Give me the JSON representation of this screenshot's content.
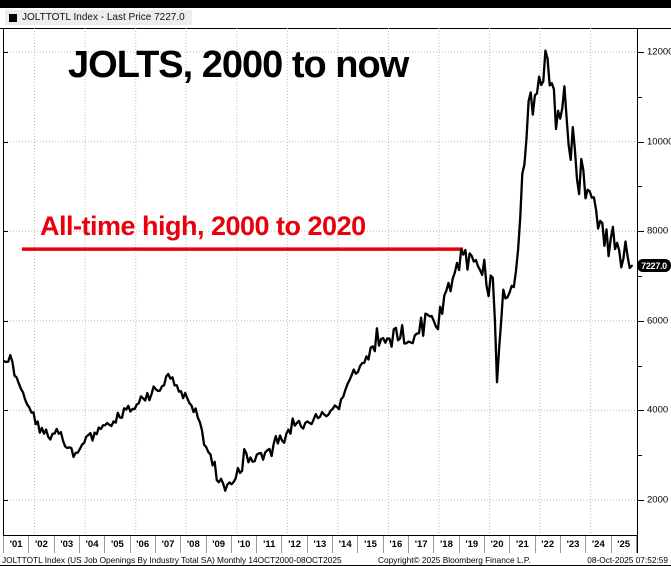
{
  "legend": {
    "series_label": "JOLTTOTL Index - Last Price 7227.0"
  },
  "headline": {
    "title": "JOLTS, 2000 to now"
  },
  "annotation": {
    "text": "All-time high, 2000 to 2020",
    "color": "#e8000d",
    "value": 7600,
    "x1_year": 2001.5,
    "x2_year": 2018.95
  },
  "last_price": {
    "label": "7227.0",
    "value": 7227.0,
    "bg": "#000000",
    "fg": "#ffffff"
  },
  "y_axis": {
    "major_ticks": [
      2000,
      4000,
      6000,
      8000,
      10000,
      12000
    ],
    "minor_ticks": [
      3000,
      5000,
      7000,
      9000,
      11000
    ]
  },
  "x_axis": {
    "labels": [
      "'01",
      "'02",
      "'03",
      "'04",
      "'05",
      "'06",
      "'07",
      "'08",
      "'09",
      "'10",
      "'11",
      "'12",
      "'13",
      "'14",
      "'15",
      "'16",
      "'17",
      "'18",
      "'19",
      "'20",
      "'21",
      "'22",
      "'23",
      "'24",
      "'25"
    ]
  },
  "footer": {
    "left": "JOLTTOTL Index (US Job Openings By Industry Total SA) Monthly 14OCT2000-08OCT2025",
    "center": "Copyright© 2025 Bloomberg Finance L.P.",
    "right": "08-Oct-2025 07:52:59"
  },
  "chart_data": {
    "type": "line",
    "title": "JOLTS, 2000 to now",
    "series_name": "JOLTTOTL Index (US Job Openings By Industry Total SA)",
    "frequency": "monthly",
    "start": "2000-10",
    "x_domain": [
      2000.7917,
      2025.83
    ],
    "ylim": [
      1243,
      12534
    ],
    "line_color": "#000000",
    "grid": "dotted",
    "gridline_years": [
      2002,
      2004,
      2006,
      2008,
      2010,
      2012,
      2014,
      2016,
      2018,
      2020,
      2022,
      2024
    ],
    "values": [
      5100,
      5080,
      5088,
      5234,
      5085,
      4778,
      4738,
      4609,
      4483,
      4405,
      4245,
      4130,
      4067,
      3952,
      3959,
      3693,
      3753,
      3505,
      3611,
      3481,
      3573,
      3413,
      3352,
      3478,
      3485,
      3589,
      3479,
      3517,
      3327,
      3201,
      3163,
      3175,
      3159,
      2961,
      3052,
      3057,
      3135,
      3239,
      3272,
      3411,
      3452,
      3495,
      3327,
      3506,
      3471,
      3619,
      3586,
      3668,
      3670,
      3717,
      3683,
      3653,
      3756,
      3727,
      3947,
      3840,
      3839,
      4047,
      4022,
      4103,
      3975,
      4035,
      4030,
      4130,
      4161,
      4314,
      4274,
      4222,
      4390,
      4228,
      4360,
      4535,
      4473,
      4439,
      4440,
      4540,
      4562,
      4759,
      4813,
      4710,
      4740,
      4558,
      4562,
      4420,
      4430,
      4273,
      4389,
      4271,
      4163,
      4110,
      3963,
      4043,
      3840,
      3737,
      3555,
      3236,
      3177,
      3068,
      3019,
      2773,
      2854,
      2444,
      2397,
      2476,
      2373,
      2209,
      2344,
      2392,
      2355,
      2400,
      2486,
      2716,
      2606,
      2653,
      3138,
      3044,
      2842,
      2950,
      2857,
      2867,
      3014,
      3041,
      3051,
      2902,
      3063,
      3110,
      3139,
      2983,
      3256,
      3428,
      3262,
      3442,
      3328,
      3277,
      3476,
      3572,
      3481,
      3821,
      3662,
      3717,
      3770,
      3640,
      3594,
      3721,
      3755,
      3720,
      3696,
      3802,
      3918,
      3829,
      3856,
      3964,
      3910,
      3869,
      3906,
      3989,
      4034,
      4111,
      4080,
      4027,
      4249,
      4302,
      4454,
      4584,
      4675,
      4785,
      4911,
      4820,
      4856,
      4988,
      5057,
      5064,
      5206,
      5136,
      5398,
      5431,
      5323,
      5834,
      5448,
      5595,
      5614,
      5512,
      5607,
      5603,
      5423,
      5814,
      5845,
      5565,
      5607,
      5902,
      5494,
      5498,
      5539,
      5518,
      5501,
      5672,
      5717,
      5723,
      6071,
      5666,
      6160,
      6138,
      6100,
      6108,
      5996,
      5874,
      5812,
      6312,
      6156,
      6567,
      6675,
      6847,
      6662,
      6939,
      7077,
      7293,
      7131,
      7594,
      7479,
      7581,
      7142,
      7505,
      7448,
      7322,
      7356,
      7217,
      7130,
      7024,
      7361,
      6787,
      6552,
      7012,
      6958,
      6011,
      4630,
      5374,
      6001,
      6697,
      6501,
      6526,
      6632,
      6781,
      6752,
      7099,
      7590,
      8288,
      9286,
      9483,
      10073,
      10900,
      11098,
      10602,
      11033,
      11075,
      11448,
      11263,
      11344,
      12027,
      11855,
      11254,
      11303,
      11170,
      10280,
      10687,
      10512,
      10746,
      11234,
      10563,
      9931,
      9590,
      10320,
      9824,
      9165,
      8827,
      9610,
      9350,
      8733,
      8925,
      8889,
      8748,
      8756,
      8488,
      8059,
      8230,
      8184,
      7673,
      8040,
      7444,
      7839,
      8098,
      7600,
      7740,
      7568,
      7192,
      7391,
      7769,
      7437,
      7181,
      7227
    ]
  }
}
